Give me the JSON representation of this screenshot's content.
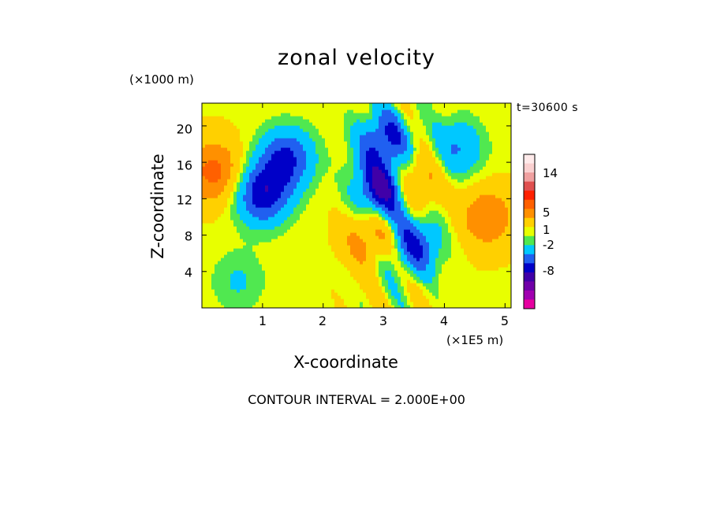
{
  "chart_data": {
    "type": "heatmap",
    "title": "zonal velocity",
    "subtitle": "t=30600 s",
    "xlabel": "X-coordinate",
    "ylabel": "Z-coordinate",
    "x_unit": "(×1E5 m)",
    "y_unit": "(×1000 m)",
    "xlim": [
      0,
      5.1
    ],
    "ylim": [
      0,
      22.5
    ],
    "x_ticks": [
      "1",
      "2",
      "3",
      "4",
      "5"
    ],
    "y_ticks": [
      "4",
      "8",
      "12",
      "16",
      "20"
    ],
    "contour_interval": "CONTOUR INTERVAL = 2.000E+00",
    "colorbar": {
      "levels": [
        -13,
        -11,
        -9,
        -7,
        -5,
        -3,
        -1,
        0,
        1,
        3,
        5,
        7,
        9,
        11,
        13,
        15,
        17
      ],
      "colors": [
        "#e600a0",
        "#a000b0",
        "#7000a8",
        "#4000a8",
        "#0000c8",
        "#2060f0",
        "#00c8ff",
        "#50e850",
        "#e8ff00",
        "#ffd000",
        "#ff9000",
        "#ff6000",
        "#ff2000",
        "#e05050",
        "#f0a0a0",
        "#fad0d0",
        "#ffeaea"
      ],
      "tick_labels": [
        "14",
        "5",
        "1",
        "-2",
        "-8"
      ]
    },
    "features": [
      {
        "x": 1.0,
        "z": 12.5,
        "value": -7
      },
      {
        "x": 1.4,
        "z": 16.5,
        "value": -6
      },
      {
        "x": 3.0,
        "z": 13.0,
        "value": -9
      },
      {
        "x": 3.0,
        "z": 18.5,
        "value": -6
      },
      {
        "x": 3.5,
        "z": 7.0,
        "value": -6
      },
      {
        "x": 3.5,
        "z": 14.0,
        "value": 5
      },
      {
        "x": 0.2,
        "z": 15.0,
        "value": 5
      },
      {
        "x": 4.7,
        "z": 10.0,
        "value": 4
      },
      {
        "x": 2.8,
        "z": 8.0,
        "value": 4
      },
      {
        "x": 4.2,
        "z": 17.5,
        "value": -4
      },
      {
        "x": 0.6,
        "z": 3.0,
        "value": -2
      }
    ]
  }
}
